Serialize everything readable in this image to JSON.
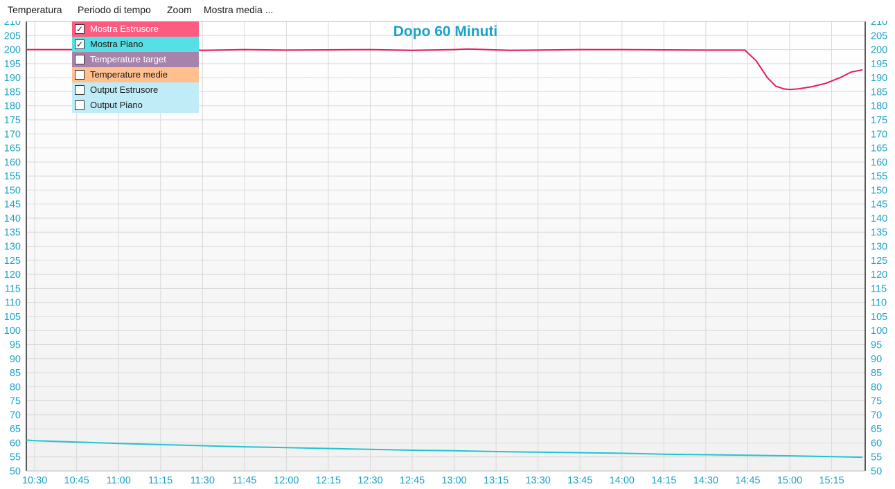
{
  "menu": {
    "items": [
      "Temperatura",
      "Periodo di tempo",
      "Zoom",
      "Mostra media ..."
    ]
  },
  "legend": {
    "items": [
      {
        "label": "Mostra Estrusore",
        "checked": true,
        "bg": "#ff5a80",
        "fg": "#ffffff"
      },
      {
        "label": "Mostra Piano",
        "checked": true,
        "bg": "#57dfe6",
        "fg": "#1a1a1a"
      },
      {
        "label": "Temperature target",
        "checked": false,
        "bg": "#a683aa",
        "fg": "#ffffff"
      },
      {
        "label": "Temperature medie",
        "checked": false,
        "bg": "#ffc08e",
        "fg": "#1a1a1a"
      },
      {
        "label": "Output Estrusore",
        "checked": false,
        "bg": "#c0ecf8",
        "fg": "#1a1a1a"
      },
      {
        "label": "Output Piano",
        "checked": false,
        "bg": "#c0ecf8",
        "fg": "#1a1a1a"
      }
    ]
  },
  "colors": {
    "axis_text": "#1aa3c8",
    "title": "#1aa3c8",
    "extruder_line": "#e8185a",
    "bed_line": "#22c4d0",
    "grid": "#d8d8d8"
  },
  "chart_data": {
    "type": "line",
    "title": "Dopo 60 Minuti",
    "xlabel": "",
    "ylabel": "",
    "ylim": [
      50,
      210
    ],
    "y_ticks": [
      210,
      205,
      200,
      195,
      190,
      185,
      180,
      175,
      170,
      165,
      160,
      155,
      150,
      145,
      140,
      135,
      130,
      125,
      120,
      115,
      110,
      105,
      100,
      95,
      90,
      85,
      80,
      75,
      70,
      65,
      60,
      55,
      50
    ],
    "x_ticks": [
      "10:30",
      "10:45",
      "11:00",
      "11:15",
      "11:30",
      "11:45",
      "12:00",
      "12:15",
      "12:30",
      "12:45",
      "13:00",
      "13:15",
      "13:30",
      "13:45",
      "14:00",
      "14:15",
      "14:30",
      "14:45",
      "15:00",
      "15:15"
    ],
    "xlim": [
      "10:27",
      "15:27"
    ],
    "grid": true,
    "series": [
      {
        "name": "Estrusore",
        "color": "#e8185a",
        "x": [
          "10:27",
          "10:40",
          "11:00",
          "11:20",
          "11:30",
          "11:45",
          "12:00",
          "12:30",
          "12:45",
          "13:00",
          "13:05",
          "13:20",
          "13:45",
          "14:00",
          "14:30",
          "14:44",
          "14:48",
          "14:52",
          "14:55",
          "14:58",
          "15:00",
          "15:03",
          "15:08",
          "15:13",
          "15:18",
          "15:22",
          "15:26"
        ],
        "y": [
          200,
          200,
          200,
          200,
          199.7,
          200,
          199.8,
          200,
          199.7,
          200,
          200.2,
          199.7,
          200,
          200,
          199.8,
          199.8,
          196,
          190,
          187,
          186,
          185.8,
          186,
          186.8,
          188,
          190,
          192,
          192.8
        ]
      },
      {
        "name": "Piano",
        "color": "#22c4d0",
        "x": [
          "10:27",
          "10:30",
          "10:45",
          "11:00",
          "11:15",
          "11:30",
          "11:45",
          "12:00",
          "12:15",
          "12:30",
          "12:45",
          "13:00",
          "13:15",
          "13:30",
          "13:45",
          "14:00",
          "14:15",
          "14:30",
          "14:45",
          "15:00",
          "15:15",
          "15:26"
        ],
        "y": [
          61,
          60.8,
          60.3,
          59.8,
          59.4,
          59,
          58.6,
          58.3,
          58,
          57.7,
          57.4,
          57.2,
          56.9,
          56.7,
          56.5,
          56.3,
          56,
          55.8,
          55.6,
          55.4,
          55.1,
          54.9
        ]
      }
    ]
  }
}
